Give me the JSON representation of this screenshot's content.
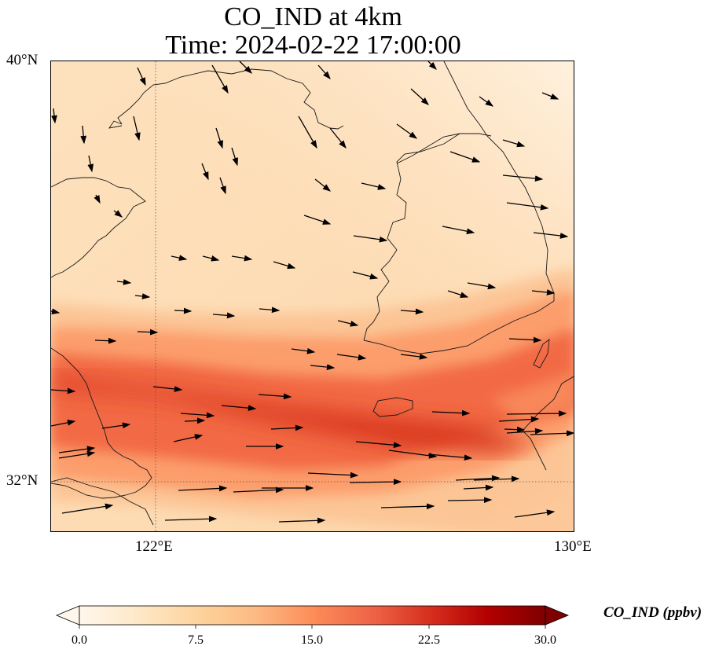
{
  "title": {
    "line1": "CO_IND at 4km",
    "line2": "Time: 2024-02-22 17:00:00"
  },
  "axes": {
    "lat_labels": [
      "40°N",
      "32°N"
    ],
    "lon_labels": [
      "122°E",
      "130°E"
    ],
    "lat_range": [
      31,
      40
    ],
    "lon_range": [
      120,
      130
    ],
    "gridlines": "dotted at 122°E and 32°N"
  },
  "colorbar": {
    "label": "CO_IND (ppbv)",
    "ticks": [
      "0.0",
      "7.5",
      "15.0",
      "22.5",
      "30.0"
    ],
    "min": 0,
    "max": 30,
    "colormap": "OrRd",
    "extend": "both",
    "colors": [
      "#fff7ec",
      "#fee8c8",
      "#fdd49e",
      "#fdbb84",
      "#fc8d59",
      "#ef6548",
      "#d7301f",
      "#b30000",
      "#7f0000"
    ]
  },
  "map": {
    "wind_vectors": "black arrows, mostly westerly (pointing east/southeast)",
    "high_concentration_band": "red band crossing the Yellow Sea from the Chinese coast near 32-33°N toward southern Korea, reaching about 22 ppbv"
  }
}
